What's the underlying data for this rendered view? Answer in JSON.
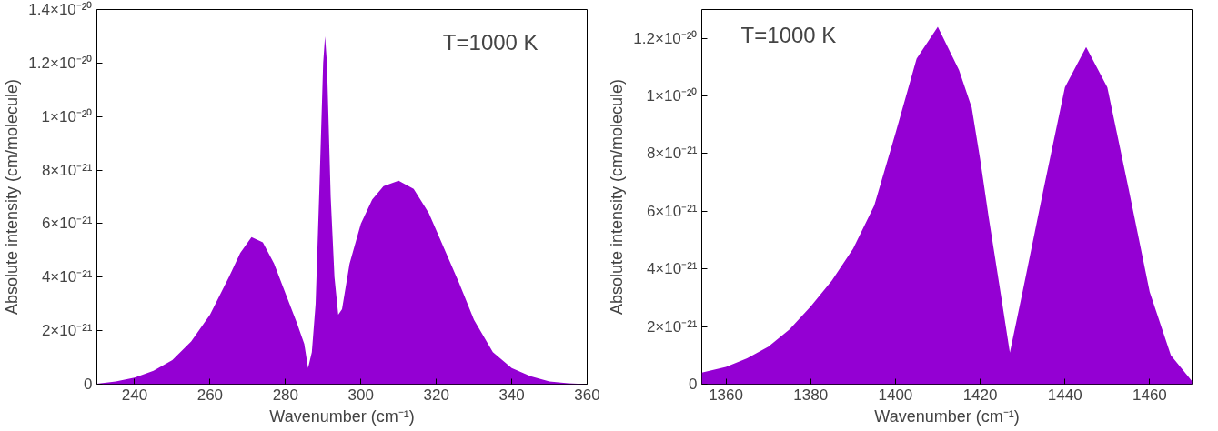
{
  "chart_data": [
    {
      "type": "area",
      "xlabel": "Wavenumber (cm⁻¹)",
      "ylabel": "Absolute intensity (cm/molecule)",
      "annotations": [
        "T=1000 K"
      ],
      "x": [
        230,
        235,
        240,
        245,
        250,
        255,
        260,
        265,
        268,
        271,
        274,
        277,
        280,
        283,
        285,
        286,
        287,
        288,
        289,
        290,
        290.5,
        291,
        292,
        293,
        294,
        295,
        297,
        300,
        303,
        306,
        310,
        314,
        318,
        322,
        326,
        330,
        335,
        340,
        345,
        350,
        355,
        360
      ],
      "series": [
        {
          "color": "#9400d3",
          "values": [
            2e-23,
            1e-22,
            2.5e-22,
            5e-22,
            9e-22,
            1.6e-21,
            2.6e-21,
            4e-21,
            4.9e-21,
            5.5e-21,
            5.3e-21,
            4.5e-21,
            3.4e-21,
            2.3e-21,
            1.5e-21,
            6e-22,
            1.2e-21,
            3e-21,
            7.3e-21,
            1.2e-20,
            1.3e-20,
            1.2e-20,
            7e-21,
            4e-21,
            2.6e-21,
            2.8e-21,
            4.5e-21,
            6e-21,
            6.9e-21,
            7.4e-21,
            7.6e-21,
            7.3e-21,
            6.4e-21,
            5.1e-21,
            3.8e-21,
            2.4e-21,
            1.2e-21,
            6e-22,
            3e-22,
            1e-22,
            3e-23,
            0
          ]
        }
      ],
      "xlim": [
        230,
        360
      ],
      "xticks": [
        240,
        260,
        280,
        300,
        320,
        340,
        360
      ],
      "ylim": [
        0,
        1.4e-20
      ],
      "yticks": [
        0,
        {
          "value": 2e-21,
          "label": "2×10⁻²¹"
        },
        {
          "value": 4e-21,
          "label": "4×10⁻²¹"
        },
        {
          "value": 6e-21,
          "label": "6×10⁻²¹"
        },
        {
          "value": 8e-21,
          "label": "8×10⁻²¹"
        },
        {
          "value": 1e-20,
          "label": "1×10⁻²⁰"
        },
        {
          "value": 1.2e-20,
          "label": "1.2×10⁻²⁰"
        },
        {
          "value": 1.4e-20,
          "label": "1.4×10⁻²⁰"
        }
      ],
      "grid": false
    },
    {
      "type": "area",
      "xlabel": "Wavenumber (cm⁻¹)",
      "ylabel": "Absolute intensity (cm/molecule)",
      "annotations": [
        "T=1000 K"
      ],
      "x": [
        1354.3,
        1360,
        1365,
        1370,
        1375,
        1380,
        1385,
        1390,
        1395,
        1400,
        1405,
        1410,
        1415,
        1418,
        1420,
        1422,
        1425,
        1427,
        1430,
        1435,
        1440,
        1445,
        1450,
        1455,
        1460,
        1465,
        1470
      ],
      "series": [
        {
          "color": "#9400d3",
          "values": [
            4e-22,
            6e-22,
            9e-22,
            1.3e-21,
            1.9e-21,
            2.7e-21,
            3.6e-21,
            4.7e-21,
            6.2e-21,
            8.7e-21,
            1.13e-20,
            1.24e-20,
            1.09e-20,
            9.6e-21,
            7.8e-21,
            5.8e-21,
            3e-21,
            1.1e-21,
            3.2e-21,
            6.8e-21,
            1.03e-20,
            1.17e-20,
            1.03e-20,
            6.8e-21,
            3.2e-21,
            1e-21,
            1e-22
          ]
        }
      ],
      "xlim": [
        1354.3,
        1470
      ],
      "xticks": [
        1360,
        1380,
        1400,
        1420,
        1440,
        1460
      ],
      "ylim": [
        0,
        1.3e-20
      ],
      "yticks": [
        0,
        {
          "value": 2e-21,
          "label": "2×10⁻²¹"
        },
        {
          "value": 4e-21,
          "label": "4×10⁻²¹"
        },
        {
          "value": 6e-21,
          "label": "6×10⁻²¹"
        },
        {
          "value": 8e-21,
          "label": "8×10⁻²¹"
        },
        {
          "value": 1e-20,
          "label": "1×10⁻²⁰"
        },
        {
          "value": 1.2e-20,
          "label": "1.2×10⁻²⁰"
        }
      ],
      "grid": false
    }
  ]
}
